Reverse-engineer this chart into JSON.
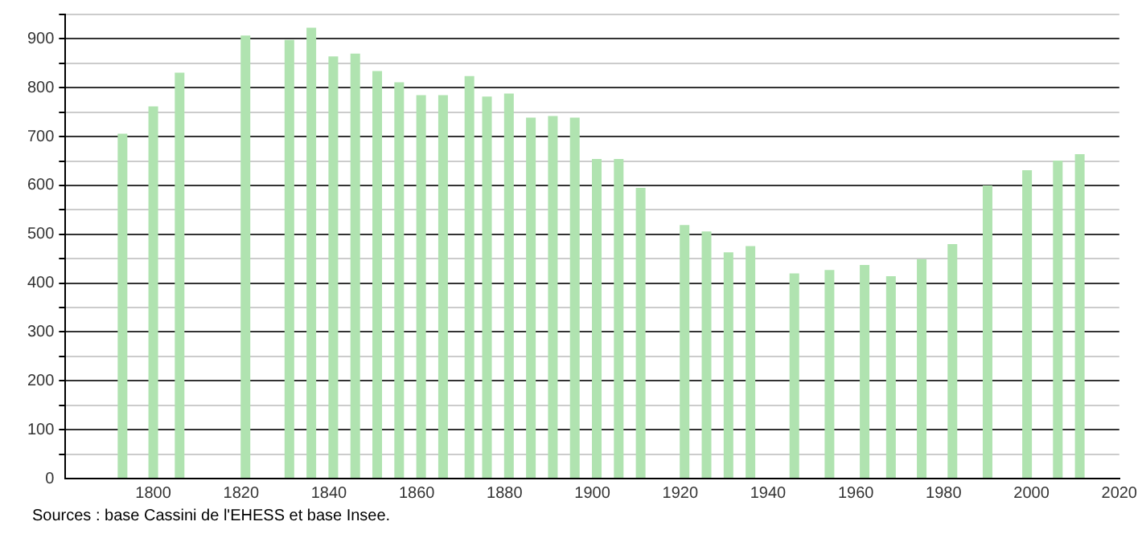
{
  "chart_data": {
    "type": "bar",
    "x": [
      1793,
      1800,
      1806,
      1821,
      1831,
      1836,
      1841,
      1846,
      1851,
      1856,
      1861,
      1866,
      1872,
      1876,
      1881,
      1886,
      1891,
      1896,
      1901,
      1906,
      1911,
      1921,
      1926,
      1931,
      1936,
      1946,
      1954,
      1962,
      1968,
      1975,
      1982,
      1990,
      1999,
      2006,
      2011
    ],
    "values": [
      706,
      762,
      831,
      907,
      898,
      923,
      864,
      870,
      834,
      811,
      785,
      785,
      824,
      782,
      788,
      739,
      742,
      739,
      654,
      654,
      595,
      519,
      506,
      463,
      476,
      420,
      427,
      437,
      414,
      449,
      480,
      600,
      631,
      651,
      664
    ],
    "color": "#b0e3b0",
    "xlim": [
      1780,
      2020
    ],
    "xticks": [
      1800,
      1820,
      1840,
      1860,
      1880,
      1900,
      1920,
      1940,
      1960,
      1980,
      2000,
      2020
    ],
    "ylim": [
      0,
      950
    ],
    "yticks": [
      0,
      {
        "value": 50,
        "label": null
      },
      100,
      {
        "value": 150,
        "label": null
      },
      200,
      {
        "value": 250,
        "label": null
      },
      300,
      {
        "value": 350,
        "label": null
      },
      400,
      {
        "value": 450,
        "label": null
      },
      500,
      {
        "value": 550,
        "label": null
      },
      600,
      {
        "value": 650,
        "label": null
      },
      700,
      {
        "value": 750,
        "label": null
      },
      800,
      {
        "value": 850,
        "label": null
      },
      900,
      {
        "value": 950,
        "label": null
      }
    ],
    "grid": "y",
    "legend": false,
    "annotations": [
      "Sources : base Cassini de l'EHESS et base Insee."
    ]
  }
}
